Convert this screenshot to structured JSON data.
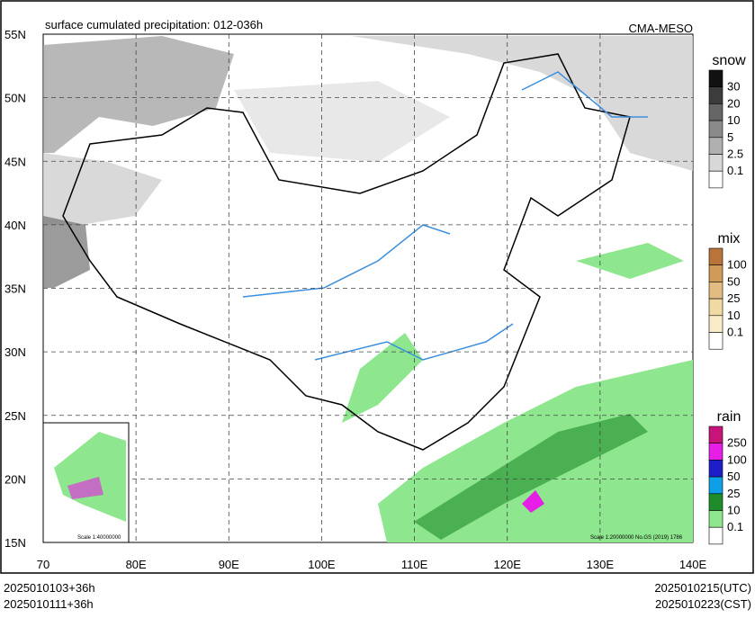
{
  "title": "surface cumulated precipitation: 012-036h",
  "model": "CMA-MESO",
  "lat_labels": [
    "55N",
    "50N",
    "45N",
    "40N",
    "35N",
    "30N",
    "25N",
    "20N",
    "15N"
  ],
  "lon_labels": [
    "70",
    "80E",
    "90E",
    "100E",
    "110E",
    "120E",
    "130E",
    "140E"
  ],
  "legends": [
    {
      "title": "snow",
      "levels": [
        "30",
        "20",
        "10",
        "5",
        "2.5",
        "0.1"
      ],
      "colors": [
        "#111111",
        "#3c3c3c",
        "#666666",
        "#8a8a8a",
        "#b0b0b0",
        "#d8d8d8",
        "#ffffff"
      ]
    },
    {
      "title": "mix",
      "levels": [
        "100",
        "50",
        "25",
        "10",
        "0.1"
      ],
      "colors": [
        "#b8743a",
        "#d09a58",
        "#e2bc80",
        "#f1d9a4",
        "#faecc8",
        "#ffffff"
      ]
    },
    {
      "title": "rain",
      "levels": [
        "250",
        "100",
        "50",
        "25",
        "10",
        "0.1"
      ],
      "colors": [
        "#c8147a",
        "#e61ee6",
        "#1e1ec8",
        "#0ea0e6",
        "#1e8c2a",
        "#8ee68e",
        "#ffffff"
      ]
    }
  ],
  "inset_scale": "Scale 1:40000000",
  "main_scale": "Scale 1:20000000 No.GS (2019) 1786",
  "footer_left": [
    "2025010103+36h",
    "2025010111+36h"
  ],
  "footer_right": [
    "2025010215(UTC)",
    "2025010223(CST)"
  ]
}
